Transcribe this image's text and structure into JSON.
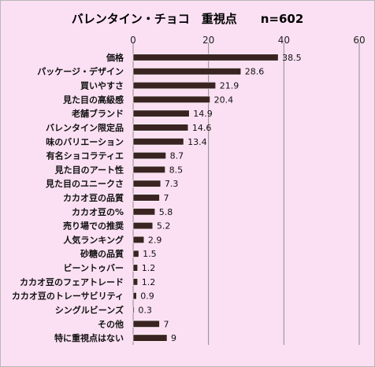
{
  "colors": {
    "background": "#fbe0f3",
    "bar": "#3a2422",
    "bar_outline": "#ffffff"
  },
  "chart_data": {
    "type": "bar",
    "orientation": "horizontal",
    "title": "バレンタイン・チョコ　重視点　　n=602",
    "x_axis_position": "top",
    "xlim": [
      0,
      60
    ],
    "x_ticks": [
      0,
      20,
      40,
      60
    ],
    "grid": "vertical",
    "legend": "none",
    "categories": [
      "価格",
      "パッケージ・デザイン",
      "買いやすさ",
      "見た目の高級感",
      "老舗ブランド",
      "バレンタイン限定品",
      "味のバリエーション",
      "有名ショコラティエ",
      "見た目のアート性",
      "見た目のユニークさ",
      "カカオ豆の品質",
      "カカオ豆の%",
      "売り場での推奨",
      "人気ランキング",
      "砂糖の品質",
      "ビーントゥバー",
      "カカオ豆のフェアトレード",
      "カカオ豆のトレーサビリティ",
      "シングルビーンズ",
      "その他",
      "特に重視点はない"
    ],
    "values": [
      38.5,
      28.6,
      21.9,
      20.4,
      14.9,
      14.6,
      13.4,
      8.7,
      8.5,
      7.3,
      7,
      5.8,
      5.2,
      2.9,
      1.5,
      1.2,
      1.2,
      0.9,
      0.3,
      7,
      9
    ]
  }
}
